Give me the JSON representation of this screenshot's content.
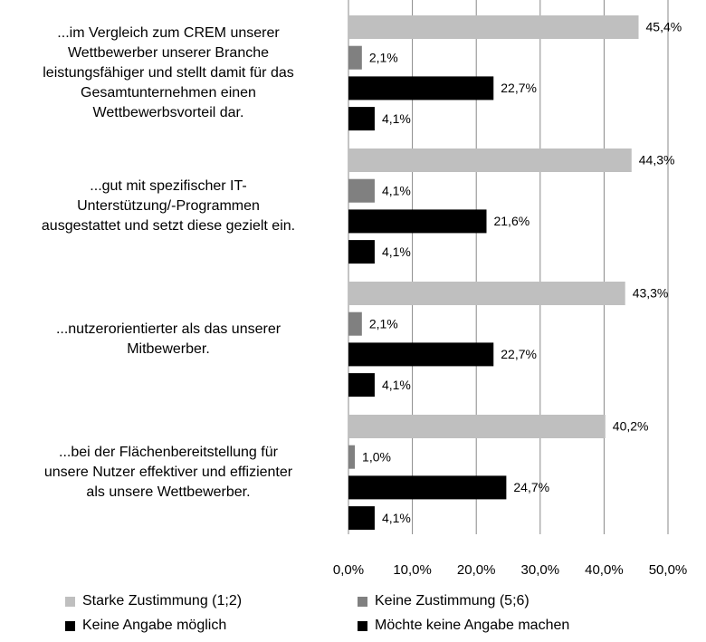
{
  "chart_data": {
    "type": "barh",
    "categories": [
      "...im Vergleich zum CREM unserer\nWettbewerber unserer Branche\nleistungsfähiger und stellt damit für das\nGesamtunternehmen einen\nWettbewerbsvorteil dar.",
      "...gut mit spezifischer IT-\nUnterstützung/-Programmen\nausgestattet und setzt diese gezielt ein.",
      "...nutzerorientierter als das unserer\nMitbewerber.",
      "...bei der Flächenbereitstellung für\nunsere Nutzer effektiver und effizienter\nals unsere Wettbewerber."
    ],
    "series": [
      {
        "name": "Starke Zustimmung (1;2)",
        "color": "#bfbfbf",
        "values": [
          45.4,
          44.3,
          43.3,
          40.2
        ],
        "value_labels": [
          "45,4%",
          "44,3%",
          "43,3%",
          "40,2%"
        ]
      },
      {
        "name": "Keine Zustimmung (5;6)",
        "color": "#808080",
        "values": [
          2.1,
          4.1,
          2.1,
          1.0
        ],
        "value_labels": [
          "2,1%",
          "4,1%",
          "2,1%",
          "1,0%"
        ]
      },
      {
        "name": "Keine Angabe möglich",
        "color": "#000000",
        "values": [
          22.7,
          21.6,
          22.7,
          24.7
        ],
        "value_labels": [
          "22,7%",
          "21,6%",
          "22,7%",
          "24,7%"
        ]
      },
      {
        "name": "Möchte keine Angabe machen",
        "color": "#000000",
        "values": [
          4.1,
          4.1,
          4.1,
          4.1
        ],
        "value_labels": [
          "4,1%",
          "4,1%",
          "4,1%",
          "4,1%"
        ]
      }
    ],
    "xlim": [
      0,
      50
    ],
    "xticks": [
      {
        "value": 0,
        "label": "0,0%"
      },
      {
        "value": 10,
        "label": "10,0%"
      },
      {
        "value": 20,
        "label": "20,0%"
      },
      {
        "value": 30,
        "label": "30,0%"
      },
      {
        "value": 40,
        "label": "40,0%"
      },
      {
        "value": 50,
        "label": "50,0%"
      }
    ],
    "grid": true
  }
}
